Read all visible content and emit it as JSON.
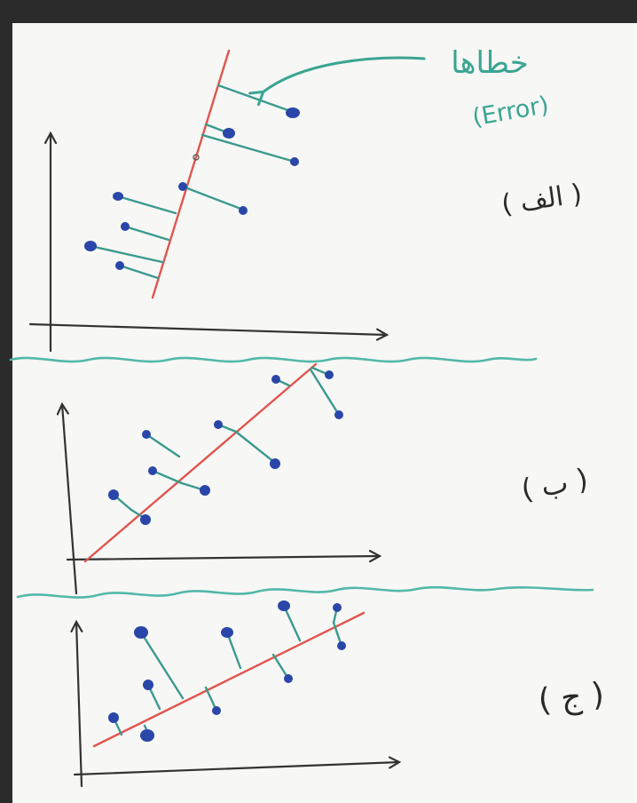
{
  "annotation": {
    "arabic": "خطاها",
    "english": "(Error)"
  },
  "panels": [
    {
      "label": "( الف )"
    },
    {
      "label": "( ب )"
    },
    {
      "label": "( ج )"
    }
  ],
  "colors": {
    "background": "#2b2b2b",
    "board": "#f7f7f5",
    "axis": "#333333",
    "fit_line": "#e0554e",
    "residual": "#3a9a8e",
    "points": "#2946a8",
    "divider": "#52b8a8",
    "annotation": "#3aa593"
  }
}
